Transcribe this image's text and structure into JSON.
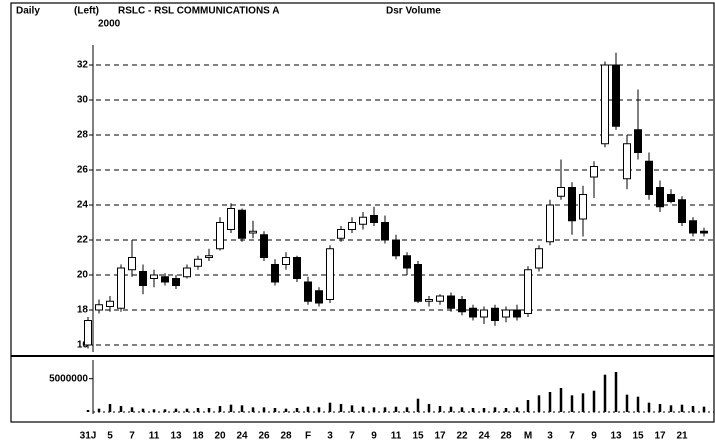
{
  "chart_data": {
    "type": "candlestick",
    "period": "Daily",
    "axis_side": "(Left)",
    "title": "RSLC - RSL COMMUNICATIONS A",
    "indicator": "Dsr Volume",
    "year": "2000",
    "categories": [
      "31J",
      null,
      "5",
      null,
      "7",
      null,
      "11",
      null,
      "13",
      null,
      "18",
      null,
      "20",
      null,
      "24",
      null,
      "26",
      null,
      "28",
      null,
      "F",
      null,
      "3",
      null,
      "7",
      null,
      "9",
      null,
      "11",
      null,
      "15",
      null,
      "17",
      null,
      "22",
      null,
      "24",
      null,
      "28",
      null,
      "M",
      null,
      "3",
      null,
      "7",
      null,
      "9",
      null,
      "13",
      null,
      "15",
      null,
      "17",
      null,
      "21",
      null,
      null
    ],
    "open": [
      16,
      18,
      18.2,
      18.1,
      20.3,
      20.2,
      19.8,
      19.9,
      19.8,
      19.9,
      20.5,
      21,
      21.5,
      22.6,
      23.7,
      22.4,
      22.3,
      20.6,
      20.6,
      21,
      19.6,
      19.1,
      18.6,
      22.1,
      22.6,
      22.9,
      23.4,
      23,
      22,
      21.1,
      20.6,
      18.5,
      18.5,
      18.8,
      18.6,
      18.1,
      17.6,
      18.1,
      17.6,
      18,
      17.8,
      20.4,
      21.9,
      24.5,
      25,
      23.2,
      25.6,
      27.5,
      32,
      25.5,
      28.3,
      26.5,
      25,
      24.6,
      24.3,
      23.1,
      22.5
    ],
    "high": [
      17.6,
      18.6,
      18.8,
      20.6,
      22,
      20.6,
      20.3,
      20.1,
      20,
      20.6,
      21.1,
      21.5,
      23.3,
      24.1,
      23.8,
      23.1,
      22.5,
      20.9,
      21.3,
      21.1,
      19.9,
      19.3,
      21.7,
      22.8,
      23.3,
      23.6,
      23.9,
      23.4,
      22.3,
      21.3,
      20.8,
      18.8,
      18.9,
      19,
      18.8,
      18.3,
      18.2,
      18.3,
      18.2,
      18.3,
      20.5,
      21.7,
      24.3,
      26.6,
      25.3,
      25.1,
      26.5,
      32.2,
      32.7,
      28,
      30.6,
      27,
      25.4,
      24.9,
      24.5,
      23.3,
      22.7
    ],
    "low": [
      15.8,
      17.8,
      17.9,
      17.9,
      19.9,
      18.9,
      19.3,
      19.4,
      19.2,
      19.8,
      20.3,
      20.8,
      21.4,
      22.4,
      21.9,
      22.1,
      20.8,
      19.4,
      20.3,
      19.6,
      18.3,
      18.2,
      18.4,
      21.9,
      22.4,
      22.6,
      22.8,
      21.8,
      20.9,
      20,
      18.4,
      18.2,
      18.3,
      17.9,
      17.7,
      17.4,
      17.2,
      17.1,
      17.3,
      17.4,
      17.6,
      20.2,
      21.7,
      24.3,
      22.3,
      22.2,
      24.4,
      27.3,
      28.3,
      24.9,
      26.6,
      24.3,
      23.6,
      24.1,
      22.8,
      22.2,
      22.2
    ],
    "close": [
      17.4,
      18.3,
      18.5,
      20.4,
      21,
      19.4,
      20,
      19.6,
      19.4,
      20.4,
      20.9,
      21.1,
      23,
      23.8,
      22.1,
      22.5,
      21,
      19.6,
      21,
      19.8,
      18.5,
      18.4,
      21.5,
      22.6,
      23,
      23.3,
      23,
      22,
      21.1,
      20.4,
      18.5,
      18.6,
      18.8,
      18.1,
      17.9,
      17.6,
      18,
      17.4,
      18,
      17.6,
      20.3,
      21.5,
      24,
      25,
      23.1,
      24.6,
      26.2,
      32,
      28.5,
      27.5,
      27,
      24.6,
      23.9,
      24.2,
      23,
      22.4,
      22.4
    ],
    "volume": [
      300000,
      500000,
      1200000,
      900000,
      700000,
      500000,
      400000,
      400000,
      500000,
      500000,
      600000,
      600000,
      900000,
      1100000,
      1000000,
      700000,
      700000,
      600000,
      500000,
      600000,
      800000,
      700000,
      1400000,
      1200000,
      1000000,
      800000,
      700000,
      700000,
      800000,
      700000,
      2000000,
      1200000,
      900000,
      800000,
      700000,
      600000,
      600000,
      700000,
      600000,
      700000,
      1800000,
      2500000,
      3000000,
      3600000,
      2500000,
      2800000,
      3200000,
      5600000,
      6000000,
      2600000,
      2300000,
      1400000,
      1200000,
      1000000,
      1100000,
      900000,
      800000
    ],
    "ylim": [
      15.5,
      32.8
    ],
    "yticks": [
      16,
      18,
      20,
      22,
      24,
      26,
      28,
      30,
      32
    ],
    "grid": true,
    "y2lim": [
      0,
      7800000
    ],
    "y2ticks": [
      5000000
    ],
    "up_color": "#ffffff",
    "down_color": "#000000"
  }
}
